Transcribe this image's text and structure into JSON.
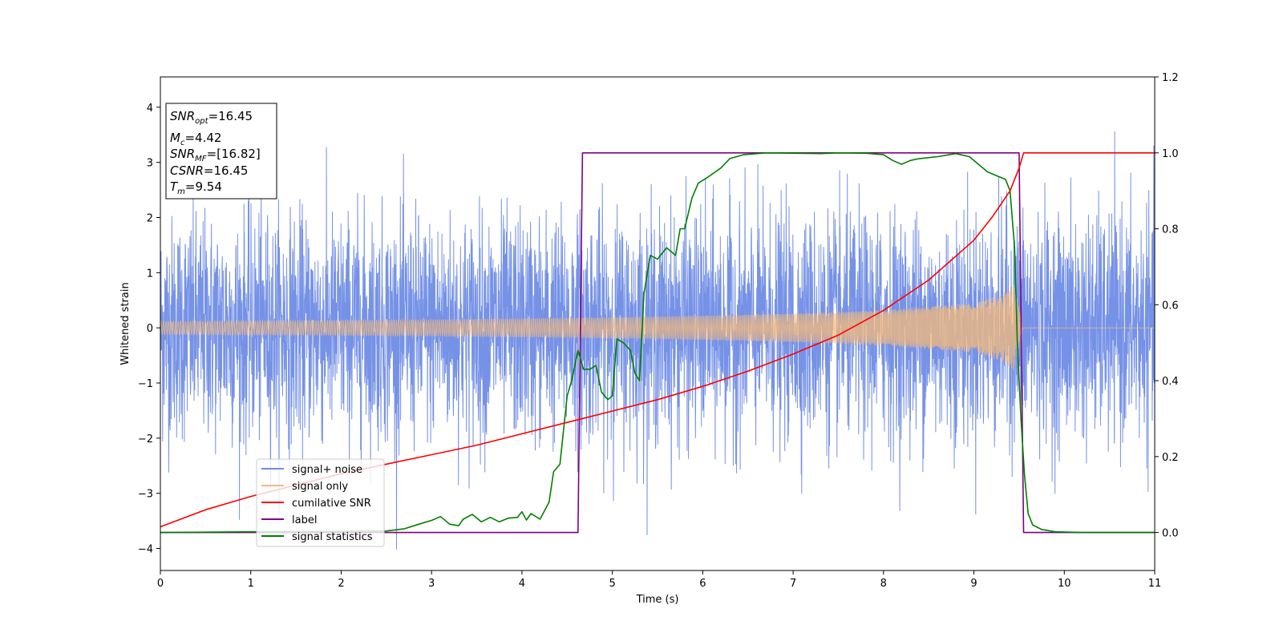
{
  "chart_data": {
    "type": "line",
    "xlabel": "Time (s)",
    "ylabel": "Whitened strain",
    "xlim": [
      0,
      11
    ],
    "ylim_left": [
      -4.4,
      4.55
    ],
    "ylim_right": [
      -0.1,
      1.2
    ],
    "x_ticks": [
      "0",
      "1",
      "2",
      "3",
      "4",
      "5",
      "6",
      "7",
      "8",
      "9",
      "10",
      "11"
    ],
    "y_ticks_left": [
      "−4",
      "−3",
      "−2",
      "−1",
      "0",
      "1",
      "2",
      "3",
      "4"
    ],
    "y_ticks_right": [
      "0.0",
      "0.2",
      "0.4",
      "0.6",
      "0.8",
      "1.0",
      "1.2"
    ],
    "legend_location": "lower-left",
    "colors": {
      "signal_noise": "#6f8ce6",
      "signal_only": "#f5b97a",
      "cumulative_snr": "#ff0000",
      "label": "#800080",
      "signal_statistics": "#008000"
    },
    "annotation": {
      "snr_opt": {
        "main": "SNR",
        "sub": "opt",
        "value": "=16.45"
      },
      "mc": {
        "main": "M",
        "sub": "c",
        "value": "=4.42"
      },
      "snr_mf": {
        "main": "SNR",
        "sub": "MF",
        "value": "=[16.82]"
      },
      "csnr": {
        "main": "CSNR",
        "value": "=16.45"
      },
      "tm": {
        "main": "T",
        "sub": "m",
        "value": "=9.54"
      }
    },
    "series": [
      {
        "name": "signal+ noise",
        "axis": "left",
        "kind": "noise",
        "x_range": [
          0,
          11
        ],
        "approx_sigma": 1.0,
        "approx_extreme": 4.15
      },
      {
        "name": "signal only",
        "axis": "left",
        "kind": "chirp",
        "merger_time": 9.54,
        "envelope": {
          "x": [
            0,
            1,
            2,
            3,
            4,
            5,
            6,
            7,
            8,
            9,
            9.3,
            9.45,
            9.54,
            11
          ],
          "y": [
            0.12,
            0.13,
            0.14,
            0.15,
            0.17,
            0.19,
            0.22,
            0.26,
            0.32,
            0.45,
            0.6,
            0.8,
            0.0,
            0.0
          ]
        }
      },
      {
        "name": "cumilative SNR",
        "axis": "right",
        "x": [
          0,
          0.5,
          1,
          1.5,
          2,
          2.5,
          3,
          3.5,
          4,
          4.5,
          5,
          5.5,
          6,
          6.5,
          7,
          7.5,
          8,
          8.5,
          9,
          9.2,
          9.4,
          9.5,
          9.55,
          11
        ],
        "y": [
          0.015,
          0.06,
          0.095,
          0.125,
          0.155,
          0.18,
          0.205,
          0.23,
          0.26,
          0.29,
          0.32,
          0.35,
          0.385,
          0.425,
          0.47,
          0.52,
          0.585,
          0.665,
          0.77,
          0.83,
          0.9,
          0.96,
          1.0,
          1.0
        ]
      },
      {
        "name": "label",
        "axis": "right",
        "x": [
          0,
          4.62,
          4.67,
          9.5,
          9.55,
          11
        ],
        "y": [
          0.0,
          0.0,
          1.0,
          1.0,
          0.0,
          0.0
        ]
      },
      {
        "name": "signal statistics",
        "axis": "right",
        "x": [
          0,
          1,
          2,
          2.5,
          2.7,
          2.9,
          3.0,
          3.1,
          3.2,
          3.3,
          3.35,
          3.45,
          3.55,
          3.65,
          3.75,
          3.85,
          3.95,
          4.0,
          4.05,
          4.1,
          4.2,
          4.3,
          4.35,
          4.42,
          4.5,
          4.55,
          4.62,
          4.68,
          4.75,
          4.82,
          4.88,
          4.95,
          5.0,
          5.05,
          5.12,
          5.2,
          5.25,
          5.3,
          5.35,
          5.42,
          5.5,
          5.6,
          5.7,
          5.75,
          5.8,
          5.88,
          5.95,
          6.05,
          6.2,
          6.3,
          6.45,
          6.7,
          7.0,
          7.3,
          7.5,
          7.8,
          8.0,
          8.1,
          8.2,
          8.3,
          8.4,
          8.6,
          8.8,
          8.95,
          9.05,
          9.15,
          9.25,
          9.35,
          9.4,
          9.45,
          9.48,
          9.52,
          9.56,
          9.6,
          9.65,
          9.75,
          9.9,
          10.2,
          11
        ],
        "y": [
          0.0,
          0.002,
          0.003,
          0.004,
          0.01,
          0.025,
          0.032,
          0.042,
          0.022,
          0.018,
          0.035,
          0.048,
          0.028,
          0.04,
          0.028,
          0.038,
          0.04,
          0.055,
          0.033,
          0.05,
          0.035,
          0.08,
          0.16,
          0.18,
          0.36,
          0.4,
          0.48,
          0.43,
          0.43,
          0.44,
          0.37,
          0.35,
          0.36,
          0.51,
          0.5,
          0.48,
          0.42,
          0.4,
          0.63,
          0.73,
          0.72,
          0.75,
          0.73,
          0.8,
          0.8,
          0.88,
          0.92,
          0.935,
          0.96,
          0.985,
          0.995,
          1.0,
          0.999,
          0.998,
          1.0,
          0.999,
          0.995,
          0.98,
          0.97,
          0.98,
          0.985,
          0.99,
          0.998,
          0.99,
          0.97,
          0.95,
          0.94,
          0.93,
          0.9,
          0.75,
          0.5,
          0.3,
          0.15,
          0.05,
          0.02,
          0.008,
          0.002,
          0.0,
          0.0
        ]
      }
    ]
  }
}
